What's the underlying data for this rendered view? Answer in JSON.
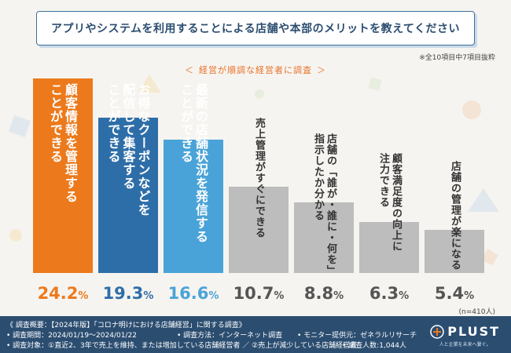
{
  "header": {
    "title": "アプリやシステムを利用することによる店舗や本部のメリットを教えてください",
    "note": "※全10項目中7項目抜粋",
    "subtitle": "経営が順調な経営者に調査",
    "subtitle_left": "＜",
    "subtitle_right": "＞"
  },
  "chart_data": {
    "type": "bar",
    "categories": [
      "顧客情報を管理することができる",
      "お得なクーポンなどを配信して集客することができる",
      "最新の店舗状況を発信することができる",
      "売上管理がすぐにできる",
      "店舗の「誰が・誰に・何を」指示したか分かる",
      "顧客満足度の向上に注力できる",
      "店舗の管理が楽になる"
    ],
    "label_lines": [
      [
        "顧客情報を管理する",
        "ことができる"
      ],
      [
        "お得なクーポンなどを",
        "配信して集客する",
        "ことができる"
      ],
      [
        "最新の店舗状況を発信する",
        "ことができる"
      ],
      [
        "売上管理がすぐにできる"
      ],
      [
        "店舗の「誰が・誰に・何を」",
        "指示したか分かる"
      ],
      [
        "顧客満足度の向上に",
        "注力できる"
      ],
      [
        "店舗の管理が楽になる"
      ]
    ],
    "values": [
      24.2,
      19.3,
      16.6,
      10.7,
      8.8,
      6.3,
      5.4
    ],
    "value_labels": [
      "24.2",
      "19.3",
      "16.6",
      "10.7",
      "8.8",
      "6.3",
      "5.4"
    ],
    "unit": "%",
    "ylim": [
      0,
      24.2
    ],
    "bar_colors": [
      "#ec7a1c",
      "#2e6ea8",
      "#4aa3d8",
      "#bdbdbd",
      "#bdbdbd",
      "#bdbdbd",
      "#bdbdbd"
    ],
    "label_colors": [
      "#ffffff",
      "#ffffff",
      "#ffffff",
      "#333333",
      "#333333",
      "#333333",
      "#333333"
    ],
    "value_colors": [
      "#ec7a1c",
      "#2e6ea8",
      "#4aa3d8",
      "#555555",
      "#555555",
      "#555555",
      "#555555"
    ],
    "sample_note": "(n=410人)"
  },
  "footer": {
    "line1": "《 調査概要：【2024年版】「コロナ明けにおける店舗経営」に関する調査》",
    "line2a": "• 調査期間：2024/01/19〜2024/01/22",
    "line2b": "• 調査方法：インターネット調査",
    "line2c": "• モニター提供元：ゼネラルリサーチ",
    "line3a": "• 調査対象：①直近2、3年で売上を維持、または増加している店舗経営者 ／ ②売上が減少している店舗経営者",
    "line3b": "• 調査人数:1,044人",
    "logo_text": "PLUST",
    "logo_tagline": "人と企業を未来へ繋ぐ。"
  },
  "colors": {
    "background": "#f6f4f0",
    "title_border": "#3f6f9e",
    "footer_bg": "#2b4d70",
    "accent": "#ec7a1c"
  }
}
